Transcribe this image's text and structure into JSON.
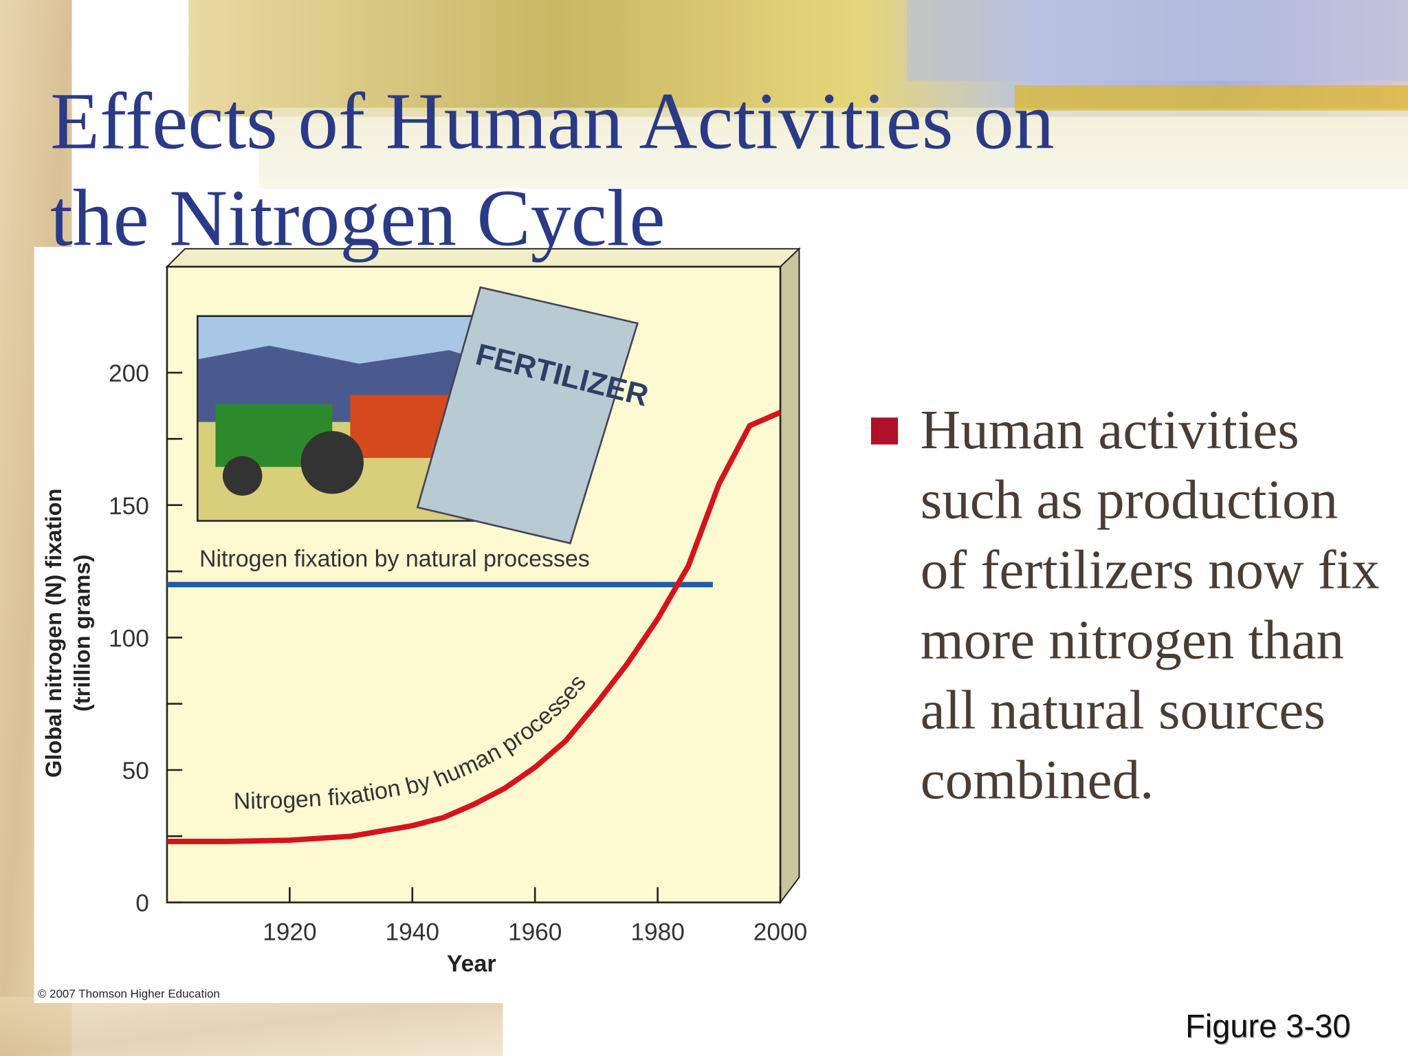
{
  "title": "Effects of Human Activities on the Nitrogen Cycle",
  "bullet": "Human activities such as production of fertilizers now fix more nitrogen than all natural sources combined.",
  "figure_label": "Figure 3-30",
  "copyright": "© 2007 Thomson Higher Education",
  "image_label": "FERTILIZER",
  "chart_data": {
    "type": "line",
    "x_label": "Year",
    "y_label": [
      "Global nitrogen (N) fixation",
      "(trillion grams)"
    ],
    "xlim": [
      1900,
      2000
    ],
    "ylim": [
      0,
      240
    ],
    "xticks": [
      1920,
      1940,
      1960,
      1980,
      2000
    ],
    "yticks": [
      0,
      50,
      100,
      150,
      200
    ],
    "yticks_minor": [
      25,
      75,
      125,
      175
    ],
    "series": [
      {
        "name": "Nitrogen fixation by natural processes",
        "color": "#1b5ea8",
        "x": [
          1900,
          1989
        ],
        "values": [
          120,
          120
        ]
      },
      {
        "name": "Nitrogen fixation by human processes",
        "color": "#d4141c",
        "x": [
          1900,
          1910,
          1920,
          1930,
          1940,
          1945,
          1950,
          1955,
          1960,
          1965,
          1970,
          1975,
          1980,
          1985,
          1990,
          1995,
          2000
        ],
        "values": [
          23,
          23,
          23.5,
          25,
          29,
          32,
          37,
          43,
          51,
          61,
          75,
          90,
          107,
          127,
          158,
          180,
          185
        ]
      }
    ]
  }
}
